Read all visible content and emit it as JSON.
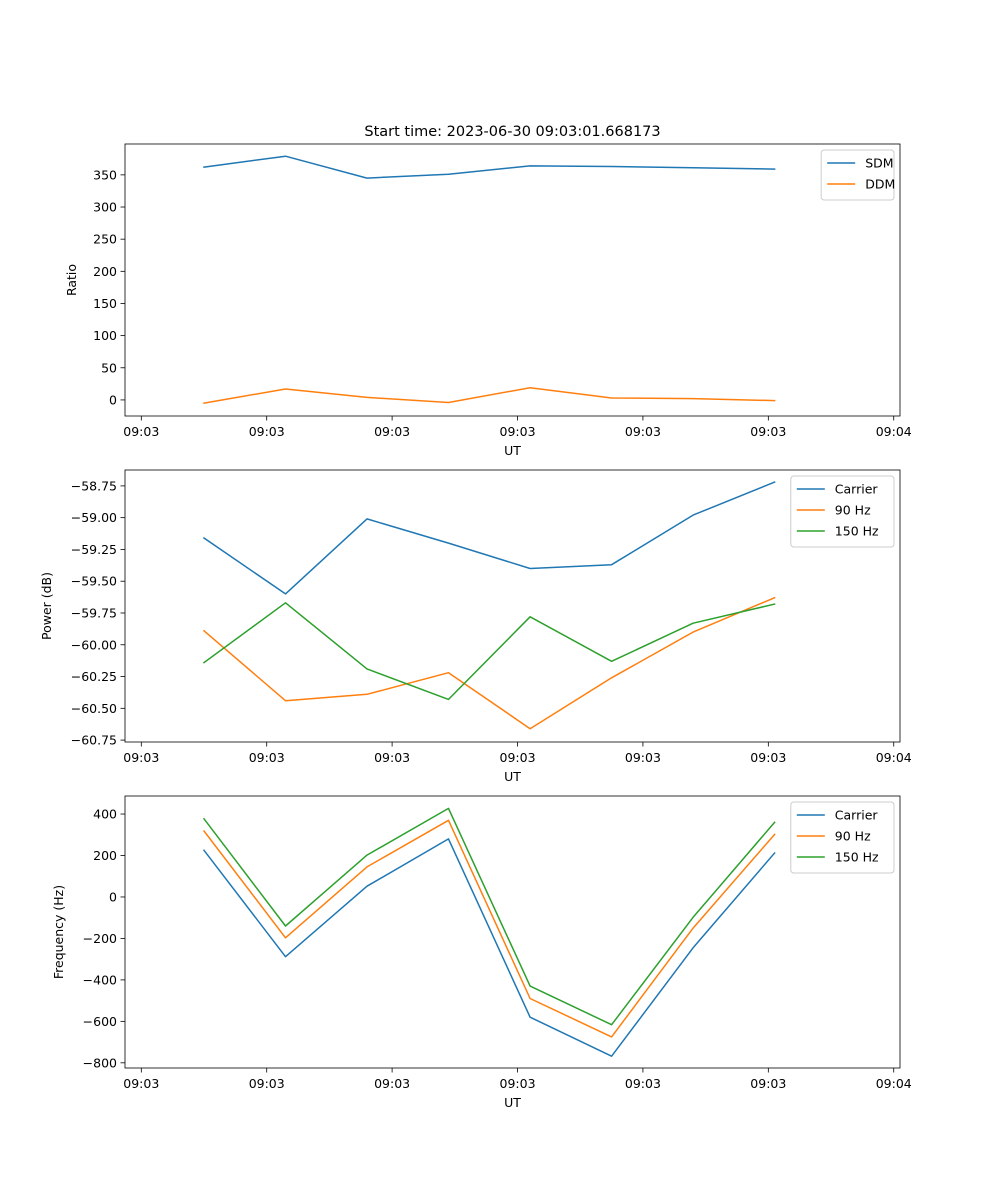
{
  "figure": {
    "title": "Start time: 2023-06-30 09:03:01.668173"
  },
  "chart_data": [
    {
      "type": "line",
      "title": "Start time: 2023-06-30 09:03:01.668173",
      "xlabel": "UT",
      "ylabel": "Ratio",
      "x_tick_labels": [
        "09:03",
        "09:03",
        "09:03",
        "09:03",
        "09:03",
        "09:03",
        "09:04"
      ],
      "y_ticks": [
        0,
        50,
        100,
        150,
        200,
        250,
        300,
        350
      ],
      "y_tick_labels": [
        "0",
        "50",
        "100",
        "150",
        "200",
        "250",
        "300",
        "350"
      ],
      "ylim": [
        -25,
        398
      ],
      "xlim": [
        -0.13,
        6.05
      ],
      "x": [
        0.5,
        1.15,
        1.8,
        2.45,
        3.1,
        3.75,
        4.4,
        5.05
      ],
      "legend_position": "upper right",
      "series": [
        {
          "name": "SDM",
          "color": "#1f77b4",
          "values": [
            362,
            379,
            345,
            351,
            364,
            363,
            361,
            359
          ]
        },
        {
          "name": "DDM",
          "color": "#ff7f0e",
          "values": [
            -5,
            17,
            4,
            -4,
            19,
            3,
            2,
            -1
          ]
        }
      ]
    },
    {
      "type": "line",
      "xlabel": "UT",
      "ylabel": "Power (dB)",
      "x_tick_labels": [
        "09:03",
        "09:03",
        "09:03",
        "09:03",
        "09:03",
        "09:03",
        "09:04"
      ],
      "y_ticks": [
        -60.75,
        -60.5,
        -60.25,
        -60.0,
        -59.75,
        -59.5,
        -59.25,
        -59.0,
        -58.75
      ],
      "y_tick_labels": [
        "−60.75",
        "−60.50",
        "−60.25",
        "−60.00",
        "−59.75",
        "−59.50",
        "−59.25",
        "−59.00",
        "−58.75"
      ],
      "ylim": [
        -60.765,
        -58.625
      ],
      "xlim": [
        -0.13,
        6.05
      ],
      "x": [
        0.5,
        1.15,
        1.8,
        2.45,
        3.1,
        3.75,
        4.4,
        5.05
      ],
      "legend_position": "upper right",
      "series": [
        {
          "name": "Carrier",
          "color": "#1f77b4",
          "values": [
            -59.16,
            -59.6,
            -59.01,
            -59.2,
            -59.4,
            -59.37,
            -58.98,
            -58.72
          ]
        },
        {
          "name": "90 Hz",
          "color": "#ff7f0e",
          "values": [
            -59.89,
            -60.44,
            -60.39,
            -60.22,
            -60.66,
            -60.26,
            -59.9,
            -59.63
          ]
        },
        {
          "name": "150 Hz",
          "color": "#2ca02c",
          "values": [
            -60.14,
            -59.67,
            -60.19,
            -60.43,
            -59.78,
            -60.13,
            -59.83,
            -59.68
          ]
        }
      ]
    },
    {
      "type": "line",
      "xlabel": "UT",
      "ylabel": "Frequency (Hz)",
      "x_tick_labels": [
        "09:03",
        "09:03",
        "09:03",
        "09:03",
        "09:03",
        "09:03",
        "09:04"
      ],
      "y_ticks": [
        -800,
        -600,
        -400,
        -200,
        0,
        200,
        400
      ],
      "y_tick_labels": [
        "−800",
        "−600",
        "−400",
        "−200",
        "0",
        "200",
        "400"
      ],
      "ylim": [
        -825,
        487
      ],
      "xlim": [
        -0.13,
        6.05
      ],
      "x": [
        0.5,
        1.15,
        1.8,
        2.45,
        3.1,
        3.75,
        4.4,
        5.05
      ],
      "legend_position": "upper right",
      "series": [
        {
          "name": "Carrier",
          "color": "#1f77b4",
          "values": [
            225,
            -288,
            52,
            280,
            -580,
            -768,
            -245,
            212
          ]
        },
        {
          "name": "90 Hz",
          "color": "#ff7f0e",
          "values": [
            318,
            -197,
            145,
            370,
            -490,
            -675,
            -150,
            302
          ]
        },
        {
          "name": "150 Hz",
          "color": "#2ca02c",
          "values": [
            377,
            -140,
            202,
            427,
            -430,
            -616,
            -98,
            360
          ]
        }
      ]
    }
  ]
}
